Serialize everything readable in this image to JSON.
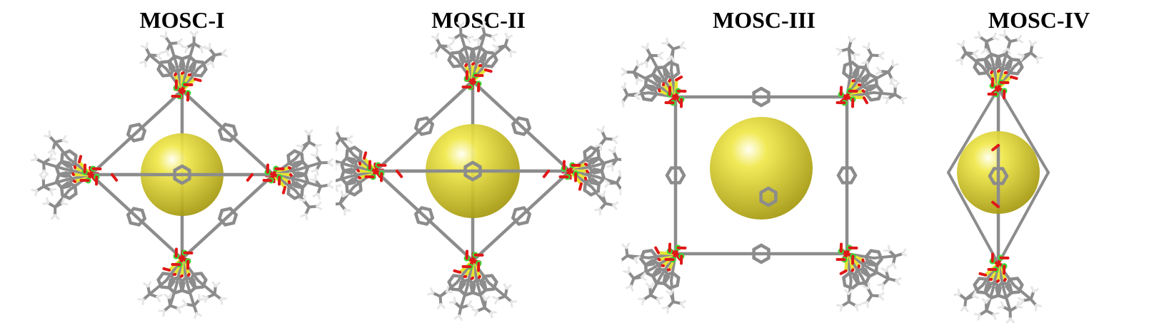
{
  "figure": {
    "panels": [
      {
        "id": "mosc-1",
        "title": "MOSC-I"
      },
      {
        "id": "mosc-2",
        "title": "MOSC-II"
      },
      {
        "id": "mosc-3",
        "title": "MOSC-III"
      },
      {
        "id": "mosc-4",
        "title": "MOSC-IV"
      }
    ]
  },
  "colors": {
    "background": "#ffffff",
    "carbon": "#8c8c8c",
    "carbon_dark": "#555555",
    "hydrogen": "#e6e6e6",
    "oxygen": "#e01818",
    "sulfur": "#e6e632",
    "cobalt": "#3cdc3c",
    "cavity": "#f0e84a"
  }
}
